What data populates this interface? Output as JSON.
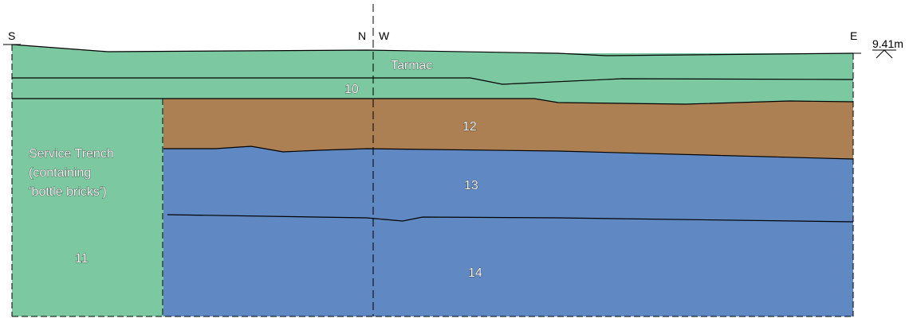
{
  "orientation": {
    "south": "S",
    "north": "N",
    "west": "W",
    "east": "E"
  },
  "datum": {
    "level": "9.41m"
  },
  "layers": {
    "tarmac": {
      "label": "Tarmac",
      "color": "#7cc8a0"
    },
    "context_10": {
      "label": "10",
      "color": "#7cc8a0"
    },
    "context_11": {
      "label": "11",
      "color": "#7cc8a0"
    },
    "context_12": {
      "label": "12",
      "color": "#ad8054"
    },
    "context_13": {
      "label": "13",
      "color": "#6088c2"
    },
    "context_14": {
      "label": "14",
      "color": "#6088c2"
    }
  },
  "service_trench": {
    "line1": "Service Trench",
    "line2": "(containing",
    "line3": "‘bottle bricks’)"
  }
}
